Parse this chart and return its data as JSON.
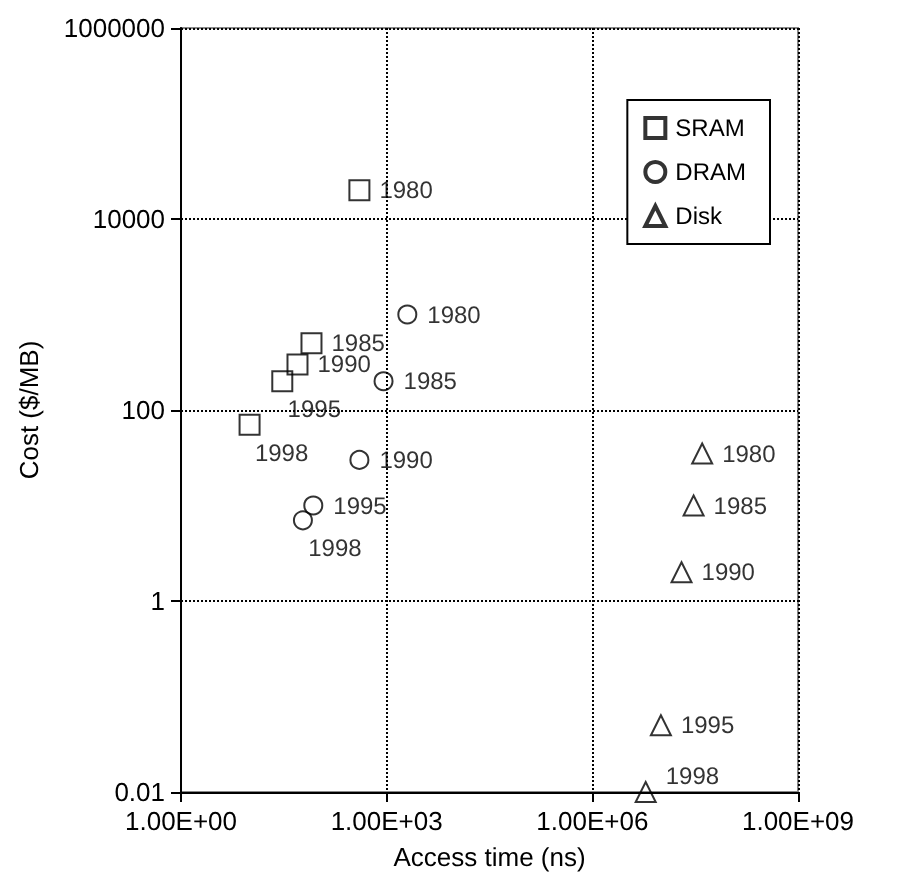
{
  "chart_data": {
    "type": "scatter",
    "xlabel": "Access time (ns)",
    "ylabel": "Cost ($/MB)",
    "log": "xy",
    "grid": true,
    "legend": "top right",
    "xlim": [
      1,
      1000000000
    ],
    "xticks": [
      {
        "value": 1,
        "label": "1.00E+00"
      },
      {
        "value": 1000,
        "label": "1.00E+03"
      },
      {
        "value": 1000000,
        "label": "1.00E+06"
      },
      {
        "value": 1000000000,
        "label": "1.00E+09"
      }
    ],
    "ylim": [
      0.01,
      1000000
    ],
    "yticks": [
      0.01,
      1,
      100,
      10000,
      1000000
    ],
    "series": [
      {
        "name": "SRAM",
        "color": "#000000",
        "marker": "square",
        "x": [
          400,
          80,
          50,
          30,
          10
        ],
        "values": [
          20000,
          500,
          300,
          200,
          70
        ]
      },
      {
        "name": "DRAM",
        "color": "#000000",
        "marker": "circle",
        "x": [
          2000,
          900,
          400,
          85,
          60
        ],
        "values": [
          1000,
          200,
          30,
          10,
          7
        ]
      },
      {
        "name": "Disk",
        "color": "#000000",
        "marker": "triangle",
        "x": [
          40000000,
          30000000,
          20000000,
          10000000,
          6000000
        ],
        "values": [
          35,
          10,
          2,
          0.05,
          0.01
        ]
      }
    ],
    "annotations": [
      {
        "text": "1980",
        "x": 400,
        "y": 20000
      },
      {
        "text": "1985",
        "x": 80,
        "y": 500
      },
      {
        "text": "1990",
        "x": 50,
        "y": 300
      },
      {
        "text": "1995",
        "x": 30,
        "y": 200
      },
      {
        "text": "1998",
        "x": 10,
        "y": 70
      },
      {
        "text": "1980",
        "x": 2000,
        "y": 1000
      },
      {
        "text": "1985",
        "x": 900,
        "y": 200
      },
      {
        "text": "1990",
        "x": 400,
        "y": 30
      },
      {
        "text": "1995",
        "x": 85,
        "y": 10
      },
      {
        "text": "1998",
        "x": 60,
        "y": 7
      },
      {
        "text": "1980",
        "x": 40000000,
        "y": 35
      },
      {
        "text": "1985",
        "x": 30000000,
        "y": 10
      },
      {
        "text": "1990",
        "x": 20000000,
        "y": 2
      },
      {
        "text": "1995",
        "x": 10000000,
        "y": 0.05
      },
      {
        "text": "1998",
        "x": 6000000,
        "y": 0.01
      }
    ]
  }
}
